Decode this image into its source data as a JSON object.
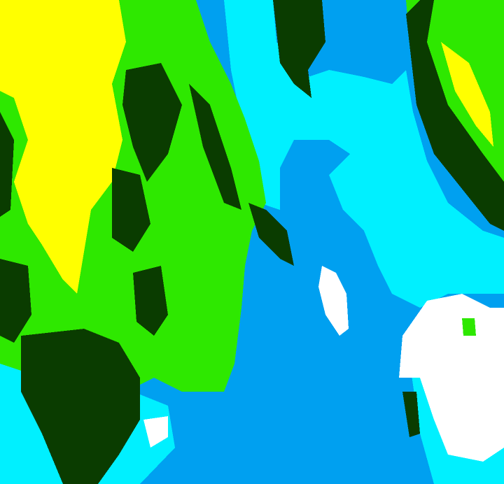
{
  "map": {
    "palette": {
      "blue": "#00a0f0",
      "cyan": "#00f0ff",
      "green": "#2ee800",
      "dark_green": "#0a3c00",
      "yellow": "#ffff00",
      "white": "#ffffff"
    }
  }
}
